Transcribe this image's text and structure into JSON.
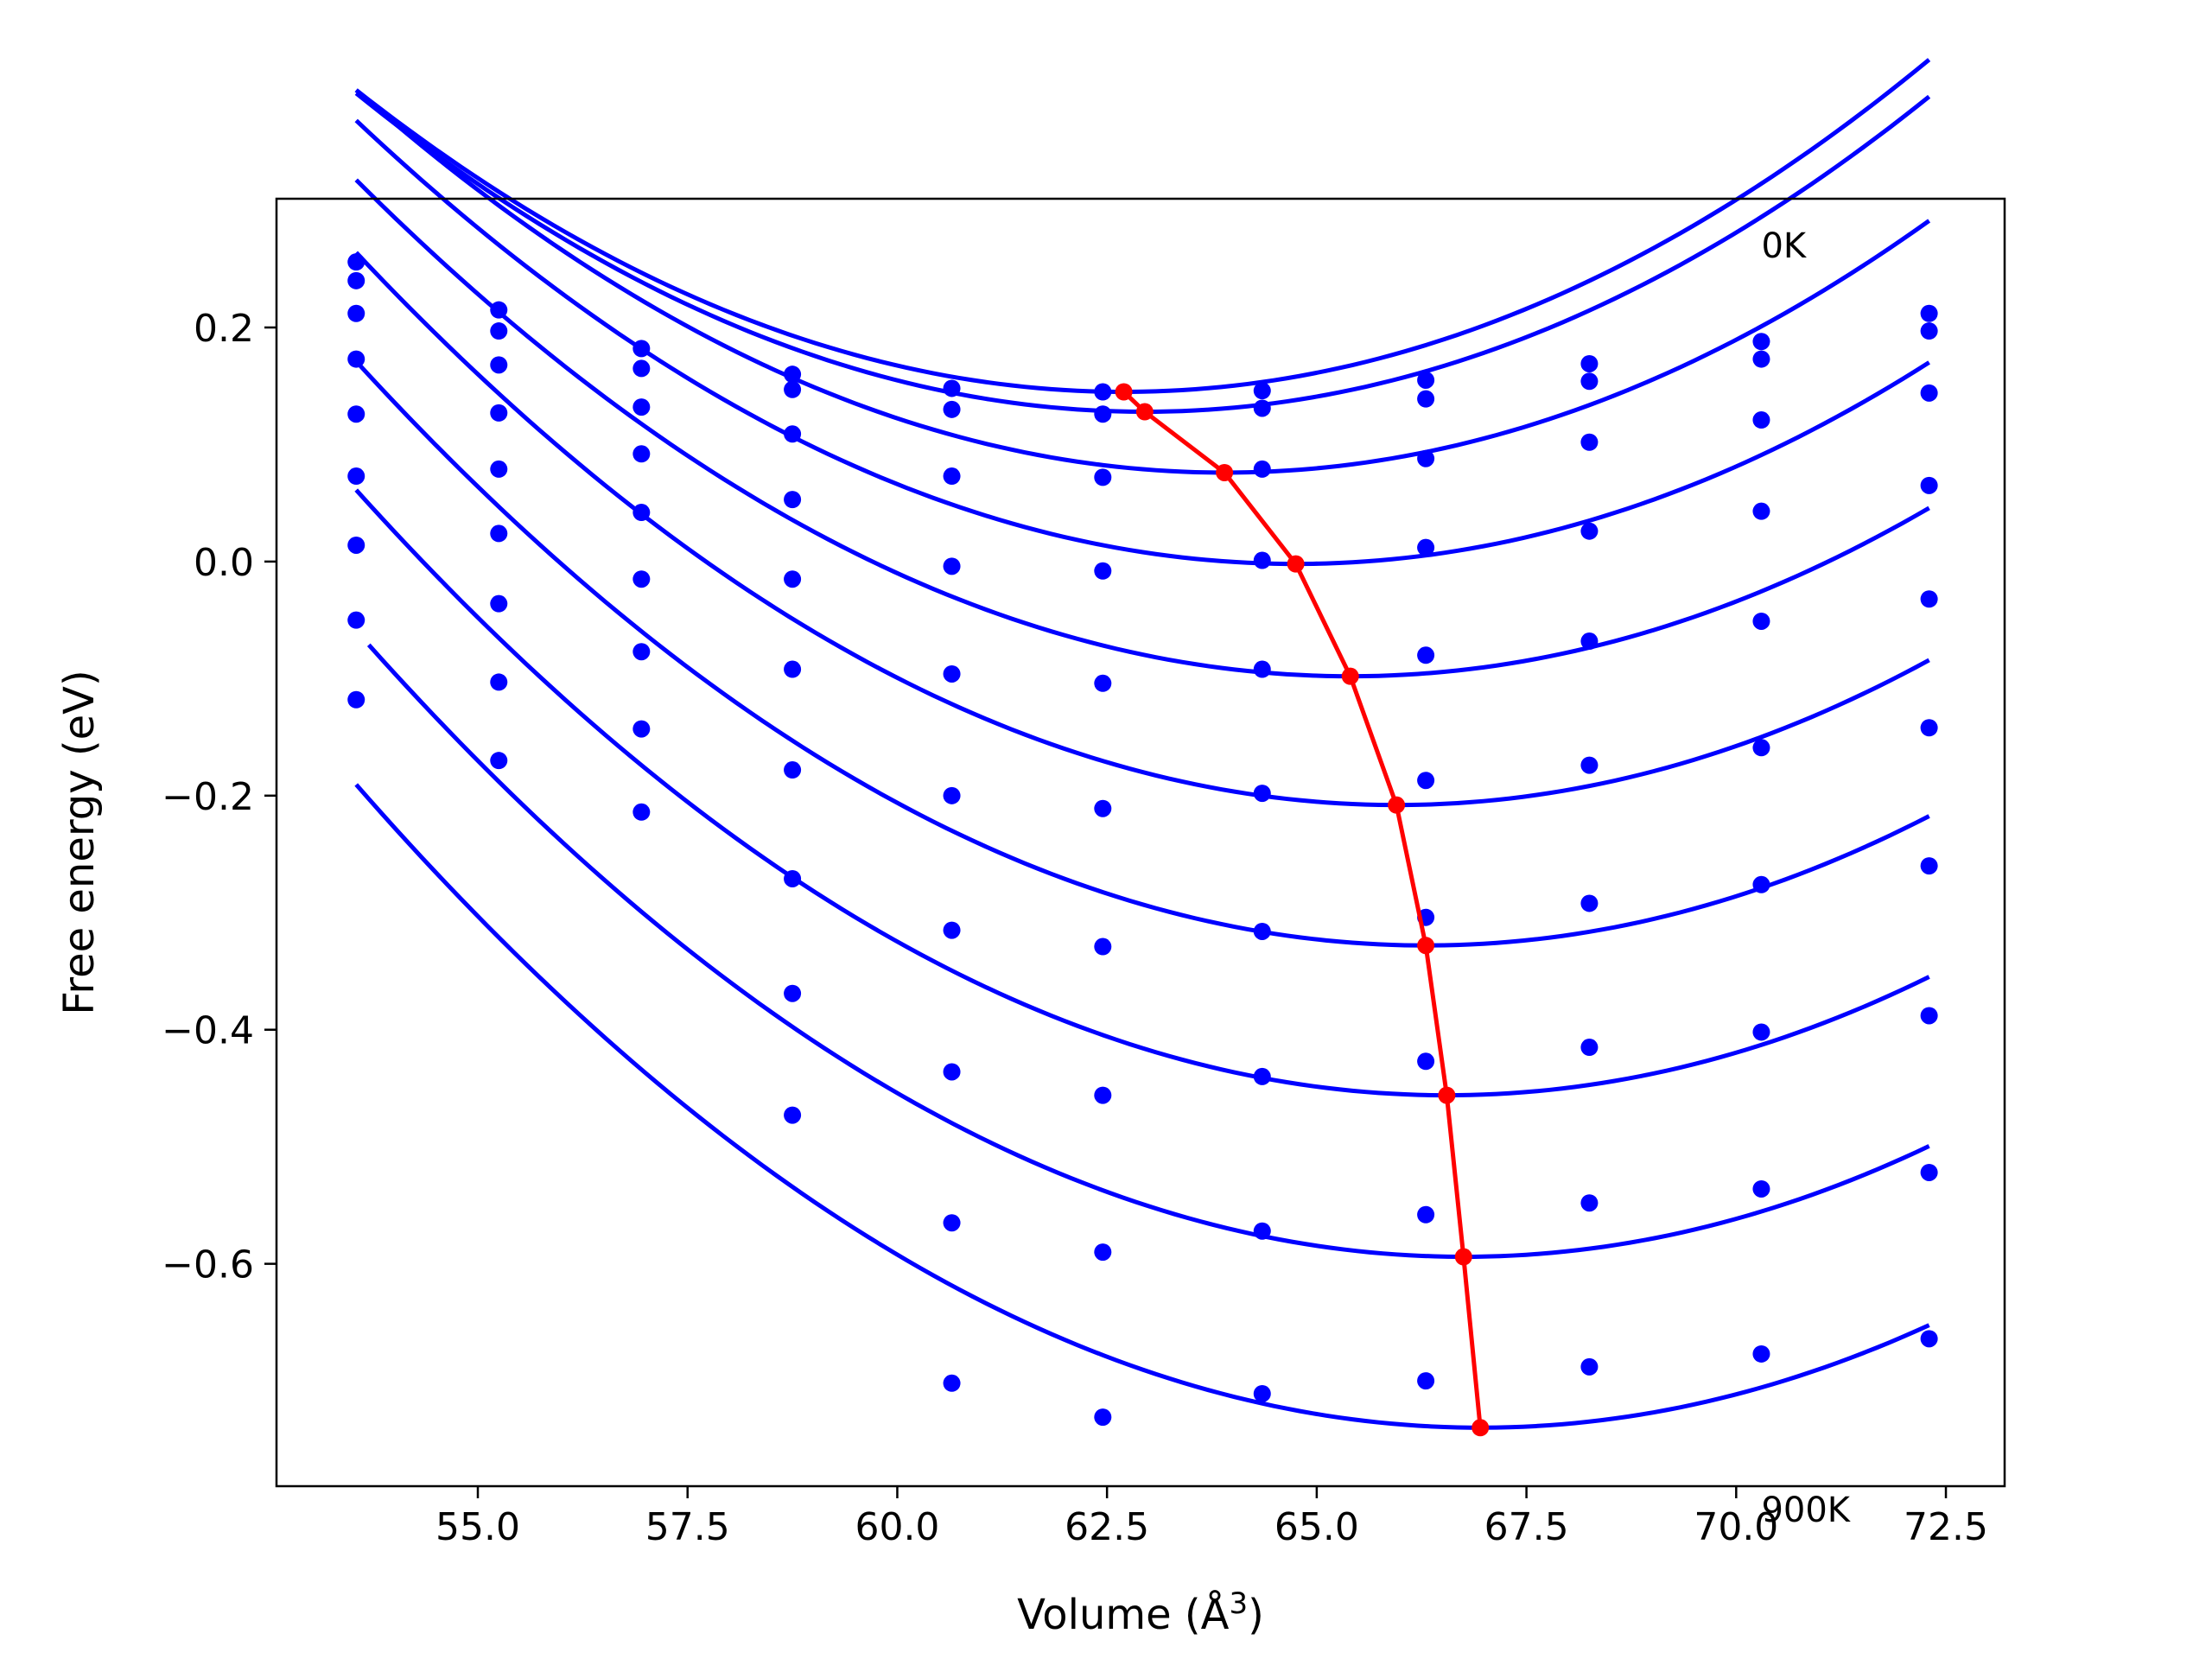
{
  "chart_data": {
    "type": "scatter",
    "title": "",
    "xlabel": "Volume (Å",
    "xlabel_sup": "3",
    "xlabel_close": ")",
    "ylabel": "Free energy (eV)",
    "xlim": [
      52.6,
      73.2
    ],
    "ylim": [
      -0.79,
      0.31
    ],
    "xticks": [
      55.0,
      57.5,
      60.0,
      62.5,
      65.0,
      67.5,
      70.0,
      72.5
    ],
    "xtick_labels": [
      "55.0",
      "57.5",
      "60.0",
      "62.5",
      "65.0",
      "67.5",
      "70.0",
      "72.5"
    ],
    "yticks": [
      0.2,
      0.0,
      -0.2,
      -0.4,
      -0.6
    ],
    "ytick_labels": [
      "0.2",
      "0.0",
      "−0.2",
      "−0.4",
      "−0.6"
    ],
    "annotations": [
      {
        "text": "0K",
        "x": 70.3,
        "y": 0.27
      },
      {
        "text": "900K",
        "x": 70.3,
        "y": -0.81
      }
    ],
    "colors": {
      "fit": "#0000ff",
      "points": "#0000ff",
      "minima": "#ff0000"
    },
    "volumes": [
      53.55,
      55.25,
      56.95,
      58.75,
      60.65,
      62.45,
      64.35,
      66.3,
      68.25,
      70.3,
      72.3
    ],
    "series": [
      {
        "points": [
          0.256,
          0.215,
          0.182,
          0.16,
          0.148,
          0.145,
          0.146,
          0.155,
          0.169,
          0.188,
          0.212
        ],
        "fit": {
          "v_min": 62.7,
          "e_min": 0.145,
          "k": 0.00308,
          "v_start": 53.55,
          "v_end": 72.3
        }
      },
      {
        "points": [
          0.24,
          0.197,
          0.165,
          0.147,
          0.13,
          0.126,
          0.131,
          0.139,
          0.154,
          0.173,
          0.197
        ],
        "fit": {
          "v_min": 62.95,
          "e_min": 0.128,
          "k": 0.00308,
          "v_start": 53.55,
          "v_end": 72.3
        }
      },
      {
        "points": [
          0.212,
          0.168,
          0.132,
          0.109,
          0.073,
          0.072,
          0.079,
          0.088,
          0.102,
          0.121,
          0.144
        ],
        "fit": {
          "v_min": 63.9,
          "e_min": 0.076,
          "k": 0.00305,
          "v_start": 53.55,
          "v_end": 72.3
        }
      },
      {
        "points": [
          0.173,
          0.127,
          0.092,
          0.053,
          -0.004,
          -0.008,
          0.001,
          0.012,
          0.026,
          0.043,
          0.065
        ],
        "fit": {
          "v_min": 64.75,
          "e_min": -0.002,
          "k": 0.00302,
          "v_start": 53.55,
          "v_end": 72.3
        }
      },
      {
        "points": [
          0.126,
          0.079,
          0.042,
          -0.015,
          -0.096,
          -0.104,
          -0.092,
          -0.08,
          -0.068,
          -0.051,
          -0.032
        ],
        "fit": {
          "v_min": 65.4,
          "e_min": -0.098,
          "k": 0.00302,
          "v_start": 53.55,
          "v_end": 72.3
        }
      },
      {
        "points": [
          0.073,
          0.024,
          -0.015,
          -0.092,
          -0.2,
          -0.211,
          -0.198,
          -0.187,
          -0.174,
          -0.159,
          -0.142
        ],
        "fit": {
          "v_min": 65.95,
          "e_min": -0.208,
          "k": 0.00307,
          "v_start": 53.55,
          "v_end": 72.3
        }
      },
      {
        "points": [
          0.014,
          -0.036,
          -0.077,
          -0.178,
          -0.315,
          -0.329,
          -0.316,
          -0.304,
          -0.292,
          -0.276,
          -0.26
        ],
        "fit": {
          "v_min": 66.3,
          "e_min": -0.328,
          "k": 0.00307,
          "v_start": 53.55,
          "v_end": 72.3
        }
      },
      {
        "points": [
          -0.05,
          -0.103,
          -0.143,
          -0.271,
          -0.436,
          -0.456,
          -0.44,
          -0.427,
          -0.415,
          -0.402,
          -0.388
        ],
        "fit": {
          "v_min": 66.55,
          "e_min": -0.456,
          "k": 0.00306,
          "v_start": 53.55,
          "v_end": 72.3
        }
      },
      {
        "points": [
          -0.118,
          -0.17,
          -0.214,
          -0.369,
          -0.565,
          -0.59,
          -0.572,
          -0.558,
          -0.548,
          -0.536,
          -0.522
        ],
        "fit": {
          "v_min": 66.75,
          "e_min": -0.594,
          "k": 0.00307,
          "v_start": 53.7,
          "v_end": 72.3
        }
      },
      {
        "points": [
          null,
          null,
          null,
          -0.473,
          -0.702,
          -0.731,
          -0.711,
          -0.7,
          -0.688,
          -0.677,
          -0.664
        ],
        "fit": {
          "v_min": 66.95,
          "e_min": -0.74,
          "k": 0.00306,
          "v_start": 53.55,
          "v_end": 72.3
        }
      }
    ],
    "minima_path": {
      "x": [
        62.7,
        62.95,
        63.9,
        64.75,
        65.4,
        65.95,
        66.3,
        66.55,
        66.75,
        66.95
      ],
      "y": [
        0.145,
        0.128,
        0.076,
        -0.002,
        -0.098,
        -0.208,
        -0.328,
        -0.456,
        -0.594,
        -0.74
      ]
    },
    "grid": false,
    "legend": "none"
  }
}
